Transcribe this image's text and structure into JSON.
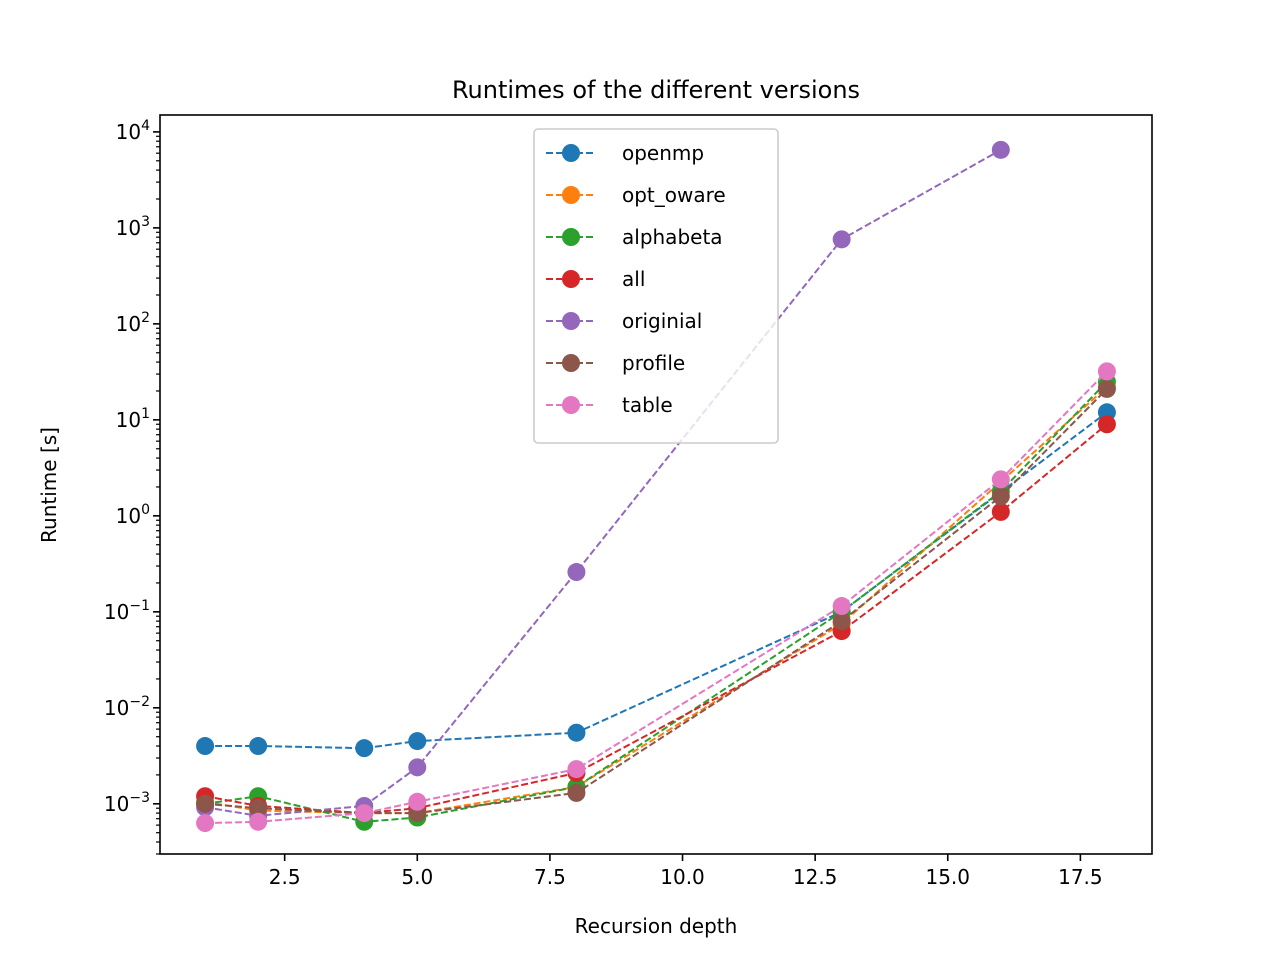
{
  "chart_data": {
    "type": "line",
    "title": "Runtimes of the different versions",
    "xlabel": "Recursion depth",
    "ylabel": "Runtime [s]",
    "xscale": "linear",
    "yscale": "log",
    "xlim": [
      0.15,
      18.85
    ],
    "ylim": [
      0.0003,
      15000
    ],
    "xticks": [
      2.5,
      5.0,
      7.5,
      10.0,
      12.5,
      15.0,
      17.5
    ],
    "xtick_labels": [
      "2.5",
      "5.0",
      "7.5",
      "10.0",
      "12.5",
      "15.0",
      "17.5"
    ],
    "ytick_exponents": [
      "-3",
      "-2",
      "-1",
      "0",
      "1",
      "2",
      "3",
      "4"
    ],
    "legend_position": "upper-center",
    "grid": false,
    "line_style": "dashed",
    "marker": "circle",
    "series": [
      {
        "name": "openmp",
        "color": "#1f77b4",
        "x": [
          1,
          2,
          4,
          5,
          8,
          13,
          18
        ],
        "y": [
          0.004,
          0.004,
          0.0038,
          0.0045,
          0.0055,
          0.1,
          12
        ]
      },
      {
        "name": "opt_oware",
        "color": "#ff7f0e",
        "x": [
          1,
          2,
          4,
          5,
          8,
          13,
          18
        ],
        "y": [
          0.00105,
          0.00085,
          0.0008,
          0.0008,
          0.0015,
          0.075,
          22
        ]
      },
      {
        "name": "alphabeta",
        "color": "#2ca02c",
        "x": [
          1,
          2,
          4,
          5,
          8,
          13,
          16,
          18
        ],
        "y": [
          0.001,
          0.0012,
          0.00065,
          0.00072,
          0.0015,
          0.1,
          1.8,
          25
        ]
      },
      {
        "name": "all",
        "color": "#d62728",
        "x": [
          1,
          2,
          4,
          5,
          8,
          13,
          16,
          18
        ],
        "y": [
          0.0012,
          0.00095,
          0.0008,
          0.0009,
          0.0021,
          0.063,
          1.1,
          9
        ]
      },
      {
        "name": "originial",
        "color": "#9467bd",
        "x": [
          1,
          2,
          4,
          5,
          8,
          13,
          16
        ],
        "y": [
          0.00092,
          0.00075,
          0.00095,
          0.0024,
          0.26,
          760,
          6500
        ]
      },
      {
        "name": "profile",
        "color": "#8c564b",
        "x": [
          1,
          2,
          4,
          5,
          8,
          13,
          16,
          18
        ],
        "y": [
          0.001,
          0.0009,
          0.0008,
          0.0008,
          0.0013,
          0.08,
          1.6,
          21
        ]
      },
      {
        "name": "table",
        "color": "#e377c2",
        "x": [
          1,
          2,
          4,
          5,
          8,
          13,
          16,
          18
        ],
        "y": [
          0.00063,
          0.00065,
          0.0008,
          0.00105,
          0.0023,
          0.115,
          2.4,
          32
        ]
      }
    ]
  }
}
